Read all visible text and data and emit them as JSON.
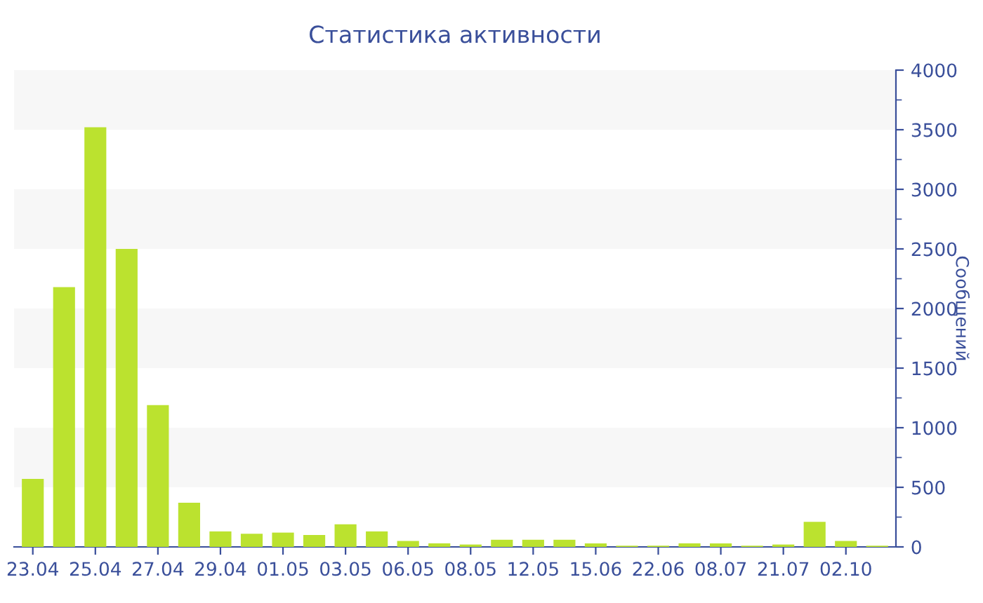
{
  "chart_data": {
    "type": "bar",
    "title": "Статистика активности",
    "ylabel": "Сообщений",
    "categories": [
      "23.04",
      null,
      "25.04",
      null,
      "27.04",
      null,
      "29.04",
      null,
      "01.05",
      null,
      "03.05",
      null,
      "06.05",
      null,
      "08.05",
      null,
      "12.05",
      null,
      "15.06",
      null,
      "22.06",
      null,
      "08.07",
      null,
      "21.07",
      null,
      "02.10",
      null
    ],
    "series": [
      {
        "color": "#bbe22f",
        "values": [
          570,
          2180,
          3520,
          2500,
          1190,
          370,
          130,
          110,
          120,
          100,
          190,
          130,
          50,
          30,
          20,
          60,
          60,
          60,
          30,
          10,
          10,
          30,
          30,
          10,
          20,
          210,
          50,
          10
        ]
      }
    ],
    "ylim": [
      0,
      4000
    ],
    "yticks": [
      0,
      500,
      1000,
      1500,
      2000,
      2500,
      3000,
      3500,
      4000
    ],
    "bands": [
      {
        "axis": "y",
        "from": 500,
        "to": 1000,
        "color": "#f7f7f7"
      },
      {
        "axis": "y",
        "from": 1500,
        "to": 2000,
        "color": "#f7f7f7"
      },
      {
        "axis": "y",
        "from": 2500,
        "to": 3000,
        "color": "#f7f7f7"
      },
      {
        "axis": "y",
        "from": 3500,
        "to": 4000,
        "color": "#f7f7f7"
      }
    ],
    "grid": false,
    "legend": false
  }
}
